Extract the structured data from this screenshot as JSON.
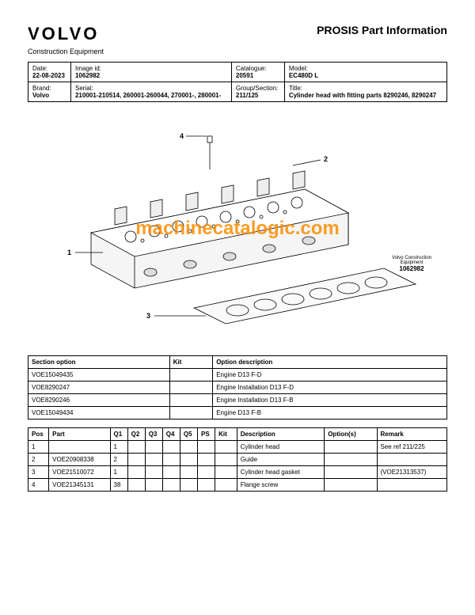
{
  "header": {
    "logo": "VOLVO",
    "title": "PROSIS Part Information",
    "subtitle": "Construction Equipment"
  },
  "info": {
    "date_label": "Date:",
    "date_value": "22-08-2023",
    "image_id_label": "Image id:",
    "image_id_value": "1062982",
    "catalogue_label": "Catalogue:",
    "catalogue_value": "20591",
    "model_label": "Model:",
    "model_value": "EC480D L",
    "brand_label": "Brand:",
    "brand_value": "Volvo",
    "serial_label": "Serial:",
    "serial_value": "210001-210514, 260001-260044, 270001-, 280001-",
    "group_label": "Group/Section:",
    "group_value": "211/125",
    "title_label": "Title:",
    "title_value": "Cylinder head with fitting parts 8290246, 8290247"
  },
  "watermark": "machinecatalogic.com",
  "diagram_caption": {
    "line1": "Volvo Construction",
    "line2": "Equipment",
    "number": "1062982"
  },
  "callouts": {
    "c1": "1",
    "c2": "2",
    "c3": "3",
    "c4": "4"
  },
  "options_table": {
    "headers": {
      "section_option": "Section option",
      "kit": "Kit",
      "option_description": "Option description"
    },
    "rows": [
      {
        "section_option": "VOE15049435",
        "kit": "",
        "option_description": "Engine D13 F-D"
      },
      {
        "section_option": "VOE8290247",
        "kit": "",
        "option_description": "Engine Installation D13 F-D"
      },
      {
        "section_option": "VOE8290246",
        "kit": "",
        "option_description": "Engine Installation D13 F-B"
      },
      {
        "section_option": "VOE15049434",
        "kit": "",
        "option_description": "Engine D13 F-B"
      }
    ]
  },
  "parts_table": {
    "headers": {
      "pos": "Pos",
      "part": "Part",
      "q1": "Q1",
      "q2": "Q2",
      "q3": "Q3",
      "q4": "Q4",
      "q5": "Q5",
      "ps": "PS",
      "kit": "Kit",
      "description": "Description",
      "options": "Option(s)",
      "remark": "Remark"
    },
    "rows": [
      {
        "pos": "1",
        "part": "",
        "q1": "1",
        "q2": "",
        "q3": "",
        "q4": "",
        "q5": "",
        "ps": "",
        "kit": "",
        "description": "Cylinder head",
        "options": "",
        "remark": "See ref 211/225"
      },
      {
        "pos": "2",
        "part": "VOE20908338",
        "q1": "2",
        "q2": "",
        "q3": "",
        "q4": "",
        "q5": "",
        "ps": "",
        "kit": "",
        "description": "Guide",
        "options": "",
        "remark": ""
      },
      {
        "pos": "3",
        "part": "VOE21510072",
        "q1": "1",
        "q2": "",
        "q3": "",
        "q4": "",
        "q5": "",
        "ps": "",
        "kit": "",
        "description": "Cylinder head gasket",
        "options": "",
        "remark": "(VOE21313537)"
      },
      {
        "pos": "4",
        "part": "VOE21345131",
        "q1": "38",
        "q2": "",
        "q3": "",
        "q4": "",
        "q5": "",
        "ps": "",
        "kit": "",
        "description": "Flange screw",
        "options": "",
        "remark": ""
      }
    ]
  }
}
